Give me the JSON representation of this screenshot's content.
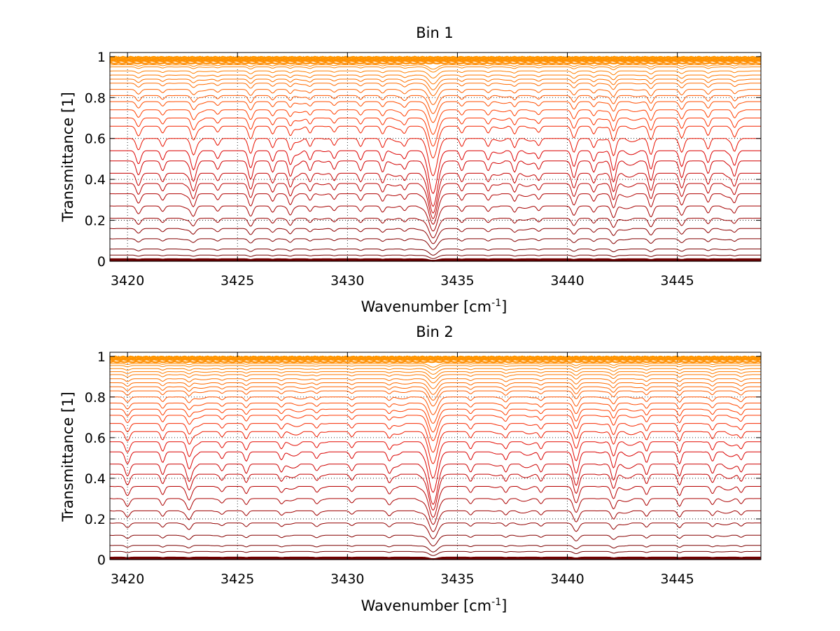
{
  "chart_data": [
    {
      "type": "line",
      "title": "Bin 1",
      "xlabel": "Wavenumber [cm",
      "xlabel_sup": "-1",
      "xlabel_end": "]",
      "ylabel": "Transmittance [1]",
      "xlim": [
        3419.2,
        3448.8
      ],
      "ylim": [
        0,
        1.02
      ],
      "grid": true,
      "xticks": [
        "3420",
        "3425",
        "3430",
        "3435",
        "3440",
        "3445"
      ],
      "yticks": [
        "0",
        "0.2",
        "0.4",
        "0.6",
        "0.8",
        "1"
      ],
      "baselines": [
        1.0,
        0.995,
        0.99,
        0.985,
        0.98,
        0.97,
        0.96,
        0.95,
        0.93,
        0.91,
        0.89,
        0.87,
        0.84,
        0.81,
        0.78,
        0.74,
        0.7,
        0.66,
        0.6,
        0.54,
        0.49,
        0.43,
        0.38,
        0.33,
        0.27,
        0.21,
        0.16,
        0.11,
        0.06,
        0.03,
        0.01,
        0.0
      ],
      "absorption_lines": [
        {
          "center": 3420.5,
          "depth": 0.5,
          "width": 0.12
        },
        {
          "center": 3421.6,
          "depth": 0.35,
          "width": 0.1
        },
        {
          "center": 3423.0,
          "depth": 0.55,
          "width": 0.12
        },
        {
          "center": 3424.1,
          "depth": 0.3,
          "width": 0.1
        },
        {
          "center": 3425.6,
          "depth": 0.65,
          "width": 0.12
        },
        {
          "center": 3426.6,
          "depth": 0.4,
          "width": 0.1
        },
        {
          "center": 3427.4,
          "depth": 0.45,
          "width": 0.1
        },
        {
          "center": 3428.3,
          "depth": 0.35,
          "width": 0.1
        },
        {
          "center": 3429.4,
          "depth": 0.3,
          "width": 0.1
        },
        {
          "center": 3430.6,
          "depth": 0.35,
          "width": 0.1
        },
        {
          "center": 3431.6,
          "depth": 0.4,
          "width": 0.1
        },
        {
          "center": 3432.6,
          "depth": 0.3,
          "width": 0.1
        },
        {
          "center": 3433.9,
          "depth": 1.6,
          "width": 0.22
        },
        {
          "center": 3435.2,
          "depth": 0.35,
          "width": 0.1
        },
        {
          "center": 3436.4,
          "depth": 0.35,
          "width": 0.1
        },
        {
          "center": 3437.6,
          "depth": 0.4,
          "width": 0.1
        },
        {
          "center": 3438.7,
          "depth": 0.3,
          "width": 0.1
        },
        {
          "center": 3440.3,
          "depth": 0.6,
          "width": 0.12
        },
        {
          "center": 3441.2,
          "depth": 0.4,
          "width": 0.1
        },
        {
          "center": 3442.1,
          "depth": 0.75,
          "width": 0.12
        },
        {
          "center": 3443.8,
          "depth": 0.7,
          "width": 0.12
        },
        {
          "center": 3445.2,
          "depth": 0.6,
          "width": 0.12
        },
        {
          "center": 3446.4,
          "depth": 0.45,
          "width": 0.1
        },
        {
          "center": 3447.6,
          "depth": 0.4,
          "width": 0.1
        }
      ]
    },
    {
      "type": "line",
      "title": "Bin 2",
      "xlabel": "Wavenumber [cm",
      "xlabel_sup": "-1",
      "xlabel_end": "]",
      "ylabel": "Transmittance [1]",
      "xlim": [
        3419.2,
        3448.8
      ],
      "ylim": [
        0,
        1.02
      ],
      "grid": true,
      "xticks": [
        "3420",
        "3425",
        "3430",
        "3435",
        "3440",
        "3445"
      ],
      "yticks": [
        "0",
        "0.2",
        "0.4",
        "0.6",
        "0.8",
        "1"
      ],
      "baselines": [
        1.0,
        0.995,
        0.99,
        0.985,
        0.975,
        0.965,
        0.955,
        0.94,
        0.925,
        0.91,
        0.89,
        0.87,
        0.85,
        0.83,
        0.8,
        0.77,
        0.74,
        0.71,
        0.67,
        0.63,
        0.58,
        0.53,
        0.47,
        0.42,
        0.36,
        0.3,
        0.24,
        0.18,
        0.12,
        0.07,
        0.04,
        0.01,
        0.0
      ],
      "absorption_lines": [
        {
          "center": 3420.0,
          "depth": 0.45,
          "width": 0.12
        },
        {
          "center": 3421.6,
          "depth": 0.4,
          "width": 0.1
        },
        {
          "center": 3422.8,
          "depth": 0.5,
          "width": 0.12
        },
        {
          "center": 3424.3,
          "depth": 0.25,
          "width": 0.1
        },
        {
          "center": 3425.4,
          "depth": 0.35,
          "width": 0.1
        },
        {
          "center": 3427.0,
          "depth": 0.3,
          "width": 0.1
        },
        {
          "center": 3428.6,
          "depth": 0.25,
          "width": 0.1
        },
        {
          "center": 3430.2,
          "depth": 0.25,
          "width": 0.1
        },
        {
          "center": 3431.9,
          "depth": 0.3,
          "width": 0.1
        },
        {
          "center": 3433.9,
          "depth": 1.5,
          "width": 0.22
        },
        {
          "center": 3435.6,
          "depth": 0.3,
          "width": 0.1
        },
        {
          "center": 3437.2,
          "depth": 0.3,
          "width": 0.1
        },
        {
          "center": 3438.8,
          "depth": 0.3,
          "width": 0.1
        },
        {
          "center": 3440.4,
          "depth": 0.8,
          "width": 0.14
        },
        {
          "center": 3442.1,
          "depth": 0.6,
          "width": 0.12
        },
        {
          "center": 3443.6,
          "depth": 0.4,
          "width": 0.1
        },
        {
          "center": 3445.1,
          "depth": 0.45,
          "width": 0.1
        },
        {
          "center": 3446.6,
          "depth": 0.35,
          "width": 0.1
        },
        {
          "center": 3447.9,
          "depth": 0.3,
          "width": 0.1
        }
      ]
    }
  ]
}
